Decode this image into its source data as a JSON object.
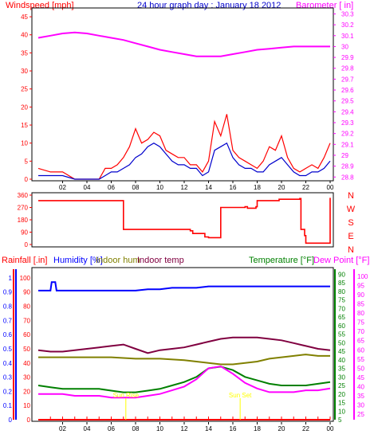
{
  "header": {
    "windspeed_label": "Windspeed [mph]",
    "title": "24 hour graph day : January 18 2012",
    "barometer_label": "Barometer [ in]"
  },
  "colors": {
    "wind_gust": "#ff0000",
    "wind_avg": "#0000cc",
    "barometer": "#ff00ff",
    "direction": "#ff0000",
    "rain": "#ff0000",
    "humidity": "#0000ff",
    "indoor_hum": "#808000",
    "indoor_temp": "#800040",
    "temperature": "#008000",
    "dew_point": "#ff00ff",
    "sun_marker": "#ffff00"
  },
  "x_ticks": [
    "02",
    "04",
    "06",
    "08",
    "10",
    "12",
    "14",
    "16",
    "18",
    "20",
    "22",
    "00"
  ],
  "direction_labels": [
    "N",
    "W",
    "S",
    "E",
    "N"
  ],
  "bottom_legend": {
    "rainfall": "Rainfall [.in]",
    "humidity": "Humidity [%]",
    "indoor_hum": "Indoor hum",
    "indoor_temp": "Indoor temp",
    "temperature": "Temperature [°F]",
    "dew_point": "Dew Point [°F]"
  },
  "sun_markers": [
    "Sun Rise",
    "Sun Set"
  ],
  "chart_data": [
    {
      "type": "line",
      "id": "wind-baro",
      "x_unit": "hour",
      "x_ticks": [
        "02",
        "04",
        "06",
        "08",
        "10",
        "12",
        "14",
        "16",
        "18",
        "20",
        "22",
        "00"
      ],
      "left_axis": {
        "label": "Windspeed [mph]",
        "ticks": [
          0,
          5,
          10,
          15,
          20,
          25,
          30,
          35,
          40,
          45
        ],
        "ylim": [
          0,
          47
        ]
      },
      "right_axis": {
        "label": "Barometer [ in]",
        "ticks": [
          28.8,
          28.9,
          29,
          29.1,
          29.2,
          29.3,
          29.4,
          29.5,
          29.6,
          29.7,
          29.8,
          29.9,
          30,
          30.1,
          30.2,
          30.3
        ],
        "ylim": [
          28.78,
          30.34
        ]
      },
      "series": [
        {
          "name": "Windspeed [mph]",
          "role": "gust",
          "axis": "left",
          "x": [
            0,
            1,
            2,
            3,
            4,
            5,
            5.5,
            6,
            6.5,
            7,
            7.5,
            8,
            8.5,
            9,
            9.5,
            10,
            10.5,
            11,
            11.5,
            12,
            12.5,
            13,
            13.5,
            14,
            14.5,
            15,
            15.5,
            16,
            16.5,
            17,
            17.5,
            18,
            18.5,
            19,
            19.5,
            20,
            20.5,
            21,
            21.5,
            22,
            22.5,
            23,
            23.5,
            24
          ],
          "values": [
            3,
            2,
            2,
            0,
            0,
            0,
            3,
            3,
            4,
            6,
            9,
            14,
            10,
            11,
            13,
            12,
            8,
            7,
            6,
            6,
            4,
            4,
            2,
            5,
            16,
            12,
            18,
            8,
            6,
            5,
            4,
            3,
            5,
            9,
            8,
            12,
            6,
            3,
            2,
            3,
            4,
            3,
            6,
            10
          ]
        },
        {
          "name": "Windspeed [mph]",
          "role": "average",
          "axis": "left",
          "x": [
            0,
            1,
            2,
            3,
            4,
            5,
            5.5,
            6,
            6.5,
            7,
            7.5,
            8,
            8.5,
            9,
            9.5,
            10,
            10.5,
            11,
            11.5,
            12,
            12.5,
            13,
            13.5,
            14,
            14.5,
            15,
            15.5,
            16,
            16.5,
            17,
            17.5,
            18,
            18.5,
            19,
            19.5,
            20,
            20.5,
            21,
            21.5,
            22,
            22.5,
            23,
            23.5,
            24
          ],
          "values": [
            1,
            1,
            1,
            0,
            0,
            0,
            1,
            2,
            2,
            3,
            4,
            6,
            7,
            9,
            10,
            9,
            7,
            5,
            4,
            4,
            3,
            3,
            1,
            2,
            8,
            9,
            10,
            6,
            4,
            3,
            3,
            2,
            2,
            4,
            5,
            6,
            4,
            2,
            1,
            1,
            2,
            2,
            3,
            5
          ]
        },
        {
          "name": "Barometer [ in]",
          "axis": "right",
          "x": [
            0,
            1,
            2,
            3,
            4,
            5,
            6,
            7,
            8,
            9,
            10,
            11,
            12,
            13,
            14,
            15,
            16,
            17,
            18,
            19,
            20,
            21,
            22,
            23,
            24
          ],
          "values": [
            30.08,
            30.1,
            30.12,
            30.13,
            30.12,
            30.1,
            30.08,
            30.06,
            30.03,
            30,
            29.97,
            29.95,
            29.93,
            29.91,
            29.91,
            29.91,
            29.93,
            29.95,
            29.97,
            29.98,
            29.99,
            30,
            30,
            30,
            30
          ]
        }
      ]
    },
    {
      "type": "line",
      "id": "wind-direction",
      "y_ticks": [
        0,
        90,
        180,
        270,
        360
      ],
      "ylim": [
        0,
        360
      ],
      "series": [
        {
          "name": "Wind direction",
          "step": true,
          "x": [
            0,
            6.9,
            7,
            12.5,
            12.7,
            13.7,
            14,
            14.7,
            15,
            17,
            17.2,
            17.9,
            18,
            19.5,
            19.8,
            21.5,
            21.6,
            21.9,
            22,
            23.8,
            24
          ],
          "values": [
            320,
            320,
            110,
            100,
            80,
            55,
            50,
            50,
            270,
            275,
            265,
            275,
            320,
            320,
            330,
            335,
            110,
            65,
            10,
            10,
            340
          ]
        }
      ]
    },
    {
      "type": "line",
      "id": "temp-humidity",
      "x_ticks": [
        "02",
        "04",
        "06",
        "08",
        "10",
        "12",
        "14",
        "16",
        "18",
        "20",
        "22",
        "00"
      ],
      "axes": {
        "rainfall": {
          "ticks": [
            0,
            0.1,
            0.2,
            0.3,
            0.4,
            0.5,
            0.6,
            0.7,
            0.8,
            0.9,
            1
          ],
          "ylim": [
            0,
            1.05
          ]
        },
        "humidity": {
          "ticks": [
            0,
            10,
            20,
            30,
            40,
            50,
            60,
            70,
            80,
            90,
            100
          ],
          "ylim": [
            0,
            105
          ]
        },
        "temperature": {
          "ticks": [
            5,
            10,
            15,
            20,
            25,
            30,
            35,
            40,
            45,
            50,
            55,
            60,
            65,
            70,
            75,
            80,
            85,
            90
          ],
          "ylim": [
            5,
            92
          ]
        },
        "dew_point": {
          "ticks": [
            25,
            30,
            35,
            40,
            45,
            50,
            55,
            60,
            65,
            70,
            75,
            80,
            85,
            90,
            95,
            100
          ],
          "ylim": [
            22,
            103
          ]
        }
      },
      "series": [
        {
          "name": "Rainfall [.in]",
          "axis": "rainfall",
          "x": [
            0,
            24
          ],
          "values": [
            0,
            0
          ]
        },
        {
          "name": "Humidity [%]",
          "axis": "humidity",
          "x": [
            0,
            1,
            1.1,
            1.4,
            1.5,
            3,
            6,
            7,
            8,
            9,
            10,
            11,
            12,
            13,
            14,
            15,
            16,
            17,
            18,
            19,
            20,
            21,
            22,
            23,
            24
          ],
          "values": [
            91,
            91,
            97,
            97,
            91,
            91,
            91,
            91,
            91,
            92,
            92,
            93,
            93,
            93,
            94,
            94,
            94,
            94,
            94,
            94,
            94,
            94,
            94,
            94,
            94
          ]
        },
        {
          "name": "Indoor hum",
          "axis": "humidity",
          "x": [
            0,
            2,
            4,
            6,
            8,
            10,
            12,
            13,
            14,
            15,
            16,
            17,
            18,
            19,
            20,
            21,
            22,
            23,
            24
          ],
          "values": [
            44,
            44,
            44,
            44,
            43,
            43,
            42,
            41,
            40,
            39,
            39,
            40,
            41,
            43,
            44,
            45,
            46,
            45,
            45
          ]
        },
        {
          "name": "Indoor temp",
          "axis": "humidity",
          "x": [
            0,
            1,
            2,
            3,
            4,
            5,
            6,
            7,
            8,
            9,
            10,
            11,
            12,
            13,
            14,
            15,
            16,
            17,
            18,
            19,
            20,
            21,
            22,
            23,
            24
          ],
          "values": [
            49,
            48,
            48,
            49,
            50,
            51,
            52,
            53,
            50,
            47,
            49,
            50,
            51,
            53,
            55,
            57,
            58,
            58,
            58,
            57,
            56,
            54,
            52,
            50,
            49
          ]
        },
        {
          "name": "Temperature [°F]",
          "axis": "temperature",
          "x": [
            0,
            1,
            2,
            3,
            4,
            5,
            6,
            7,
            8,
            9,
            10,
            11,
            12,
            13,
            14,
            15,
            16,
            17,
            18,
            19,
            20,
            21,
            22,
            23,
            24
          ],
          "values": [
            25,
            24,
            23,
            23,
            23,
            23,
            22,
            21,
            21,
            22,
            23,
            25,
            27,
            30,
            35,
            36,
            34,
            30,
            28,
            26,
            25,
            25,
            25,
            26,
            27
          ]
        },
        {
          "name": "Dew Point [°F]",
          "axis": "dew_point",
          "x": [
            0,
            1,
            2,
            3,
            4,
            5,
            6,
            7,
            8,
            9,
            10,
            11,
            12,
            13,
            14,
            15,
            16,
            17,
            18,
            19,
            20,
            21,
            22,
            23,
            24
          ],
          "values": [
            36,
            36,
            36,
            35,
            35,
            35,
            34,
            34,
            34,
            35,
            36,
            38,
            40,
            44,
            50,
            51,
            47,
            42,
            39,
            37,
            37,
            37,
            38,
            38,
            39
          ]
        }
      ]
    }
  ]
}
